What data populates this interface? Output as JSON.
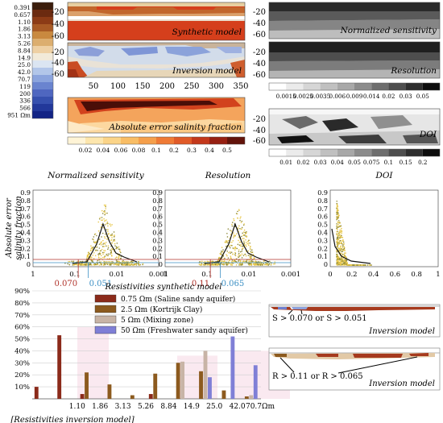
{
  "ohm_colorbar": {
    "labels": [
      "0.391",
      "0.657",
      "1.10",
      "1.86",
      "3.13",
      "5.26",
      "8.84",
      "14.9",
      "25.0",
      "42.0",
      "70.7",
      "119",
      "200",
      "336",
      "566",
      "951 Ωm"
    ],
    "colors": [
      "#3b1d0c",
      "#6b2a10",
      "#8c3b16",
      "#a85a25",
      "#c9893f",
      "#dcae6f",
      "#eed0a4",
      "#f2ead9",
      "#dbe5f2",
      "#b2c6e9",
      "#8ba4dd",
      "#6a84cf",
      "#4f67c0",
      "#3650ae",
      "#22389a",
      "#132485"
    ]
  },
  "panels": {
    "synthetic": {
      "title": "Synthetic model",
      "yticks": [
        "-20",
        "-40",
        "-60"
      ]
    },
    "inversion": {
      "title": "Inversion model",
      "yticks": [
        "-20",
        "-40",
        "-60"
      ]
    },
    "xaxis": {
      "ticks": [
        "50",
        "100",
        "150",
        "200",
        "250",
        "300",
        "350"
      ]
    },
    "abs_error": {
      "title": "Absolute error salinity fraction",
      "colorbar_labels": [
        "0.02",
        "0.04",
        "0.06",
        "0.08",
        "0.1",
        "0.2",
        "0.3",
        "0.4",
        "0.5"
      ],
      "colors": [
        "#fff4d6",
        "#fde6ad",
        "#fbd488",
        "#f9bd65",
        "#f59f4b",
        "#ef7a35",
        "#e05a28",
        "#c3381b",
        "#962012",
        "#62130a"
      ]
    },
    "norm_sens": {
      "title": "Normalized sensitivity",
      "yticks": [
        "-20",
        "-40",
        "-60"
      ]
    },
    "resolution": {
      "title": "Resolution",
      "yticks": [
        "-20",
        "-40",
        "-60"
      ]
    },
    "gray_colorbar": {
      "labels": [
        "0.0015",
        "0.0025",
        "0.0035",
        "0.006",
        "0.009",
        "0.014",
        "0.02",
        "0.03",
        "0.05"
      ]
    },
    "doi": {
      "title": "DOI",
      "yticks": [
        "-20",
        "-40",
        "-60"
      ],
      "colorbar_labels": [
        "0.01",
        "0.02",
        "0.03",
        "0.04",
        "0.05",
        "0.075",
        "0.1",
        "0.15",
        "0.2"
      ]
    }
  },
  "scatter": {
    "ylabel_1": "Absolute error",
    "ylabel_2": "salinity fraction",
    "yticks": [
      "0.9",
      "0.8",
      "0.7",
      "0.6",
      "0.5",
      "0.4",
      "0.3",
      "0.2",
      "0.1",
      "0"
    ],
    "panels": [
      {
        "title": "Normalized sensitivity",
        "xticks": [
          "1",
          "0.1",
          "0.01",
          "0.001"
        ],
        "thresholds": [
          {
            "label": "0.070",
            "color": "#b0322a"
          },
          {
            "label": "0.051",
            "color": "#3b8fc4"
          }
        ]
      },
      {
        "title": "Resolution",
        "xticks": [
          "1",
          "0.1",
          "0.01",
          "0.001"
        ],
        "thresholds": [
          {
            "label": "0.11",
            "color": "#b0322a"
          },
          {
            "label": "0.065",
            "color": "#3b8fc4"
          }
        ]
      },
      {
        "title": "DOI",
        "xticks": [
          "0",
          "0.2",
          "0.4",
          "0.6",
          "0.8",
          "1"
        ],
        "thresholds": []
      }
    ]
  },
  "profiles": {
    "top": {
      "title": "Inversion model",
      "annotation": "S > 0.070 or S > 0.051"
    },
    "bottom": {
      "title": "Inversion model",
      "annotation": "R > 0.11 or R > 0.065"
    }
  },
  "chart_data": {
    "type": "bar",
    "title": "Resistivities synthetic model",
    "xlabel": "[Resistivities inversion model]",
    "categories": [
      "",
      "1.10",
      "1.86",
      "3.13",
      "5.26",
      "8.84",
      "14.9",
      "25.0",
      "42.0",
      "70.7Ωm"
    ],
    "ylim": [
      0,
      90
    ],
    "yticks": [
      "90%",
      "80%",
      "70%",
      "60%",
      "50%",
      "40%",
      "30%",
      "20%",
      "10%"
    ],
    "series": [
      {
        "name": "0.75 Ωm (Saline sandy aquifer)",
        "color": "#8b2a1a",
        "values": [
          10,
          53,
          4,
          0,
          0,
          4,
          0,
          0,
          0,
          0
        ]
      },
      {
        "name": "2.5 Ωm (Kortrijk Clay)",
        "color": "#8c5a1e",
        "values": [
          0,
          0,
          22,
          12,
          3,
          21,
          30,
          23,
          7,
          2
        ]
      },
      {
        "name": "5 Ωm (Mixing zone)",
        "color": "#c8b4a6",
        "values": [
          0,
          0,
          0,
          0,
          0,
          0,
          31,
          40,
          0,
          3
        ]
      },
      {
        "name": "50 Ωm (Freshwater sandy aquifer)",
        "color": "#7f7fd6",
        "values": [
          0,
          0,
          0,
          0,
          0,
          0,
          0,
          18,
          52,
          28
        ]
      }
    ]
  }
}
